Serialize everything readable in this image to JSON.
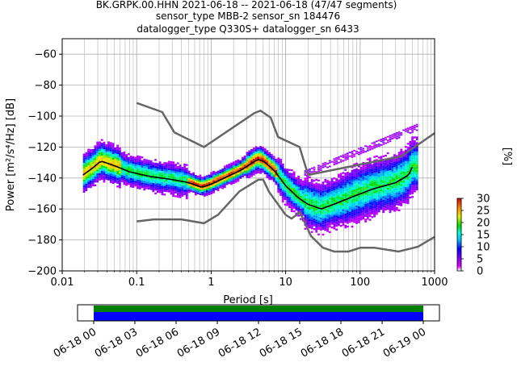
{
  "header": {
    "line1": "BK.GRPK.00.HHN   2021-06-18 -- 2021-06-18  (47/47 segments)",
    "line2": "sensor_type MBB-2 sensor_sn 184476",
    "line3": "datalogger_type Q330S+ datalogger_sn 6433"
  },
  "chart_data": {
    "type": "heatmap",
    "title": "BK.GRPK.00.HHN   2021-06-18 -- 2021-06-18  (47/47 segments)",
    "xlabel": "Period [s]",
    "ylabel": "Power [m²/s⁴/Hz] [dB]",
    "xscale": "log",
    "xlim": [
      0.01,
      1000
    ],
    "ylim": [
      -200,
      -50
    ],
    "xticks": [
      {
        "value": 0.01,
        "label": "0.01"
      },
      {
        "value": 0.1,
        "label": "0.1"
      },
      {
        "value": 1,
        "label": "1"
      },
      {
        "value": 10,
        "label": "10"
      },
      {
        "value": 100,
        "label": "100"
      },
      {
        "value": 1000,
        "label": "1000"
      }
    ],
    "yticks": [
      {
        "value": -60,
        "label": "−60"
      },
      {
        "value": -80,
        "label": "−80"
      },
      {
        "value": -100,
        "label": "−100"
      },
      {
        "value": -120,
        "label": "−120"
      },
      {
        "value": -140,
        "label": "−140"
      },
      {
        "value": -160,
        "label": "−160"
      },
      {
        "value": -180,
        "label": "−180"
      },
      {
        "value": -200,
        "label": "−200"
      }
    ],
    "grid": true,
    "nhnm": [
      [
        0.1,
        -91.5
      ],
      [
        0.22,
        -97.4
      ],
      [
        0.32,
        -110.5
      ],
      [
        0.8,
        -120
      ],
      [
        3.8,
        -98
      ],
      [
        4.6,
        -96.5
      ],
      [
        6.3,
        -101
      ],
      [
        7.9,
        -113.5
      ],
      [
        15.4,
        -120
      ],
      [
        20,
        -138
      ],
      [
        354.8,
        -126
      ],
      [
        1000,
        -111
      ]
    ],
    "nlnm": [
      [
        0.1,
        -168
      ],
      [
        0.17,
        -166.7
      ],
      [
        0.4,
        -166.7
      ],
      [
        0.8,
        -169.2
      ],
      [
        1.24,
        -163.7
      ],
      [
        2.4,
        -148.6
      ],
      [
        4.3,
        -141.1
      ],
      [
        5,
        -141.1
      ],
      [
        6,
        -149
      ],
      [
        10,
        -163.8
      ],
      [
        12,
        -166.2
      ],
      [
        15.6,
        -162.1
      ],
      [
        21.9,
        -177.5
      ],
      [
        31.6,
        -185
      ],
      [
        45,
        -187.5
      ],
      [
        70,
        -187.5
      ],
      [
        101,
        -185
      ],
      [
        154,
        -185
      ],
      [
        328,
        -187.5
      ],
      [
        600,
        -184.4
      ],
      [
        1000,
        -178
      ]
    ],
    "mean_curve": [
      [
        0.019,
        -138
      ],
      [
        0.025,
        -134
      ],
      [
        0.033,
        -129
      ],
      [
        0.05,
        -132
      ],
      [
        0.08,
        -136
      ],
      [
        0.15,
        -139
      ],
      [
        0.3,
        -141
      ],
      [
        0.5,
        -143
      ],
      [
        0.75,
        -146
      ],
      [
        1,
        -144
      ],
      [
        1.5,
        -140
      ],
      [
        2.5,
        -135
      ],
      [
        4.2,
        -128
      ],
      [
        5,
        -129
      ],
      [
        7,
        -135
      ],
      [
        10,
        -145
      ],
      [
        15,
        -153
      ],
      [
        20,
        -157
      ],
      [
        30,
        -160
      ],
      [
        50,
        -156
      ],
      [
        80,
        -152
      ],
      [
        150,
        -147
      ],
      [
        300,
        -143
      ],
      [
        450,
        -138
      ],
      [
        500,
        -133
      ]
    ],
    "colorbar": {
      "label": "[%]",
      "min": 0,
      "max": 30,
      "ticks": [
        {
          "value": 0,
          "label": "0"
        },
        {
          "value": 5,
          "label": "5"
        },
        {
          "value": 10,
          "label": "10"
        },
        {
          "value": 15,
          "label": "15"
        },
        {
          "value": 20,
          "label": "20"
        },
        {
          "value": 25,
          "label": "25"
        },
        {
          "value": 30,
          "label": "30"
        }
      ]
    },
    "time_axis": {
      "start": "2021-06-18T00:00",
      "end": "2021-06-19T00:00",
      "ticks": [
        "06-18 00",
        "06-18 03",
        "06-18 06",
        "06-18 09",
        "06-18 12",
        "06-18 15",
        "06-18 18",
        "06-18 21",
        "06-19 00"
      ],
      "coverage_colors": [
        "#008000",
        "#0000ff"
      ]
    },
    "colors": {
      "model_lines": "#666666",
      "mean_line": "#000000",
      "grid": "#b0b0b0"
    }
  }
}
